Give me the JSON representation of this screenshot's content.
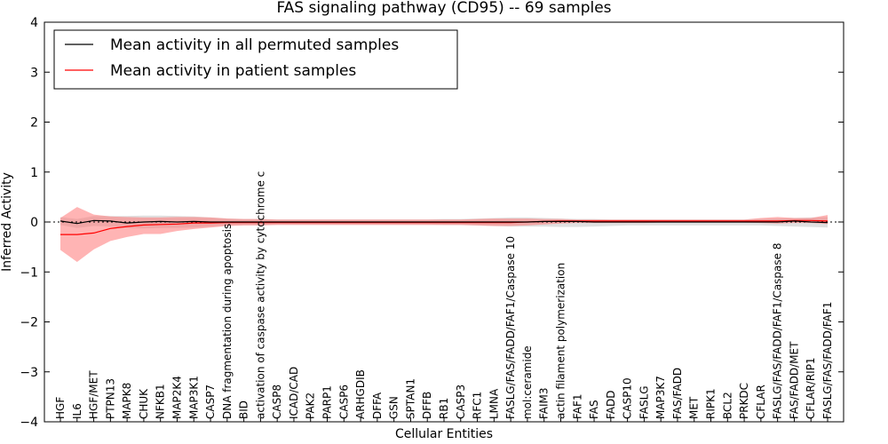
{
  "chart_data": {
    "type": "line",
    "title": "FAS signaling pathway (CD95) -- 69 samples",
    "xlabel": "Cellular Entities",
    "ylabel": "Inferred Activity",
    "ylim": [
      -4,
      4
    ],
    "yticks": [
      -4,
      -3,
      -2,
      -1,
      0,
      1,
      2,
      3,
      4
    ],
    "ytick_labels": [
      "−4",
      "−3",
      "−2",
      "−1",
      "0",
      "1",
      "2",
      "3",
      "4"
    ],
    "grid": false,
    "legend_position": "top-left",
    "categories": [
      "HGF",
      "IL6",
      "HGF/MET",
      "PTPN13",
      "MAPK8",
      "CHUK",
      "NFKB1",
      "MAP2K4",
      "MAP3K1",
      "CASP7",
      "DNA fragmentation during apoptosis",
      "BID",
      "activation of caspase activity by cytochrome c",
      "CASP8",
      "ICAD/CAD",
      "PAK2",
      "PARP1",
      "CASP6",
      "ARHGDIB",
      "DFFA",
      "GSN",
      "SPTAN1",
      "DFFB",
      "RB1",
      "CASP3",
      "RFC1",
      "LMNA",
      "FASLG/FAS/FADD/FAF1/Caspase 10",
      "mol:ceramide",
      "FAIM3",
      "actin filament polymerization",
      "FAF1",
      "FAS",
      "FADD",
      "CASP10",
      "FASLG",
      "MAP3K7",
      "FAS/FADD",
      "MET",
      "RIPK1",
      "BCL2",
      "PRKDC",
      "CFLAR",
      "FASLG/FAS/FADD/FAF1/Caspase 8",
      "FAS/FADD/MET",
      "CFLAR/RIP1",
      "FASLG/FAS/FADD/FAF1"
    ],
    "series": [
      {
        "name": "Mean activity in all permuted samples",
        "color": "#000000",
        "values": [
          0.02,
          -0.03,
          0.03,
          0.02,
          -0.02,
          0.0,
          0.01,
          0.0,
          0.01,
          0.0,
          0.0,
          0.0,
          0.0,
          0.0,
          0.0,
          0.0,
          0.0,
          0.0,
          0.0,
          0.0,
          0.0,
          0.0,
          0.0,
          0.0,
          0.0,
          0.0,
          0.0,
          0.0,
          0.0,
          0.01,
          0.01,
          0.01,
          0.0,
          0.0,
          0.0,
          0.0,
          0.0,
          0.0,
          0.0,
          0.0,
          0.0,
          0.0,
          0.0,
          0.0,
          0.02,
          0.0,
          -0.01
        ],
        "band_upper": [
          0.1,
          0.06,
          0.12,
          0.12,
          0.12,
          0.13,
          0.13,
          0.12,
          0.11,
          0.09,
          0.07,
          0.06,
          0.06,
          0.05,
          0.05,
          0.05,
          0.05,
          0.05,
          0.05,
          0.05,
          0.05,
          0.05,
          0.05,
          0.06,
          0.06,
          0.07,
          0.08,
          0.09,
          0.09,
          0.08,
          0.07,
          0.06,
          0.06,
          0.05,
          0.05,
          0.05,
          0.05,
          0.05,
          0.05,
          0.05,
          0.05,
          0.05,
          0.06,
          0.07,
          0.08,
          0.09,
          0.1
        ],
        "band_lower": [
          -0.06,
          -0.12,
          -0.08,
          -0.09,
          -0.12,
          -0.13,
          -0.12,
          -0.12,
          -0.11,
          -0.09,
          -0.07,
          -0.06,
          -0.06,
          -0.05,
          -0.05,
          -0.05,
          -0.05,
          -0.05,
          -0.05,
          -0.05,
          -0.05,
          -0.05,
          -0.05,
          -0.06,
          -0.06,
          -0.07,
          -0.08,
          -0.09,
          -0.09,
          -0.09,
          -0.1,
          -0.1,
          -0.09,
          -0.08,
          -0.07,
          -0.07,
          -0.07,
          -0.07,
          -0.07,
          -0.07,
          -0.07,
          -0.07,
          -0.07,
          -0.08,
          -0.09,
          -0.1,
          -0.11
        ],
        "band_color": "#bbbbbb"
      },
      {
        "name": "Mean activity in patient samples",
        "color": "#ff0000",
        "values": [
          -0.25,
          -0.25,
          -0.22,
          -0.13,
          -0.09,
          -0.06,
          -0.05,
          -0.04,
          -0.02,
          -0.02,
          -0.01,
          -0.01,
          -0.01,
          -0.01,
          -0.01,
          -0.01,
          -0.01,
          -0.01,
          -0.01,
          -0.01,
          -0.01,
          -0.01,
          -0.01,
          -0.01,
          -0.01,
          -0.01,
          -0.01,
          -0.01,
          0.0,
          0.01,
          0.02,
          0.02,
          0.02,
          0.02,
          0.02,
          0.02,
          0.02,
          0.02,
          0.02,
          0.02,
          0.02,
          0.02,
          0.02,
          0.02,
          0.03,
          0.03,
          0.02
        ],
        "band_upper": [
          0.08,
          0.3,
          0.15,
          0.11,
          0.1,
          0.09,
          0.09,
          0.1,
          0.1,
          0.09,
          0.07,
          0.06,
          0.06,
          0.05,
          0.05,
          0.05,
          0.05,
          0.05,
          0.05,
          0.05,
          0.05,
          0.05,
          0.05,
          0.05,
          0.05,
          0.06,
          0.07,
          0.07,
          0.07,
          0.06,
          0.06,
          0.05,
          0.05,
          0.05,
          0.05,
          0.05,
          0.05,
          0.05,
          0.05,
          0.05,
          0.05,
          0.05,
          0.08,
          0.1,
          0.08,
          0.08,
          0.14
        ],
        "band_lower": [
          -0.56,
          -0.8,
          -0.55,
          -0.38,
          -0.3,
          -0.24,
          -0.24,
          -0.18,
          -0.14,
          -0.11,
          -0.08,
          -0.07,
          -0.07,
          -0.06,
          -0.06,
          -0.06,
          -0.06,
          -0.06,
          -0.06,
          -0.06,
          -0.06,
          -0.06,
          -0.06,
          -0.06,
          -0.06,
          -0.07,
          -0.08,
          -0.08,
          -0.07,
          -0.05,
          -0.03,
          -0.02,
          -0.02,
          -0.02,
          -0.02,
          -0.02,
          -0.01,
          -0.01,
          -0.01,
          -0.01,
          -0.01,
          -0.01,
          -0.02,
          -0.03,
          -0.02,
          -0.02,
          -0.04
        ],
        "band_color": "#ff7777"
      }
    ]
  }
}
